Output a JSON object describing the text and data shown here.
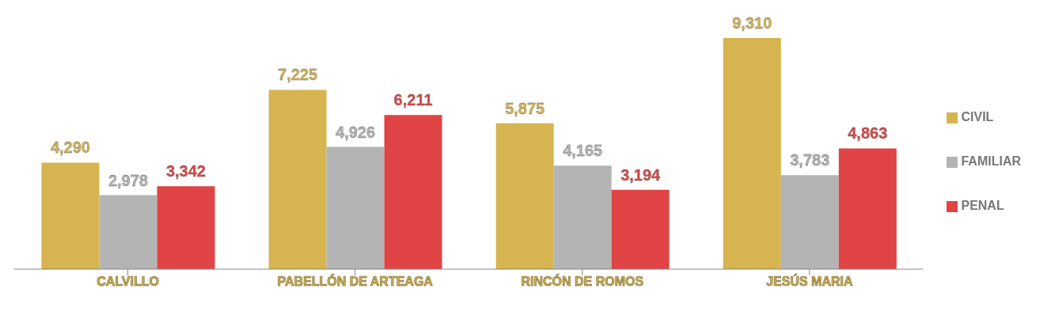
{
  "chart_data": {
    "type": "bar",
    "categories": [
      "CALVILLO",
      "PABELLÓN DE ARTEAGA",
      "RINCÓN DE ROMOS",
      "JESÚS MARIA"
    ],
    "series": [
      {
        "name": "CIVIL",
        "color": "#d6b450",
        "values": [
          4290,
          7225,
          5875,
          9310
        ],
        "value_labels": [
          "4,290",
          "7,225",
          "5,875",
          "9,310"
        ]
      },
      {
        "name": "FAMILIAR",
        "color": "#b4b4b4",
        "values": [
          2978,
          4926,
          4165,
          3783
        ],
        "value_labels": [
          "2,978",
          "4,926",
          "4,165",
          "3,783"
        ]
      },
      {
        "name": "PENAL",
        "color": "#e04444",
        "values": [
          3342,
          6211,
          3194,
          4863
        ],
        "value_labels": [
          "3,342",
          "6,211",
          "3,194",
          "4,863"
        ]
      }
    ],
    "legend": "right",
    "grid": false
  }
}
